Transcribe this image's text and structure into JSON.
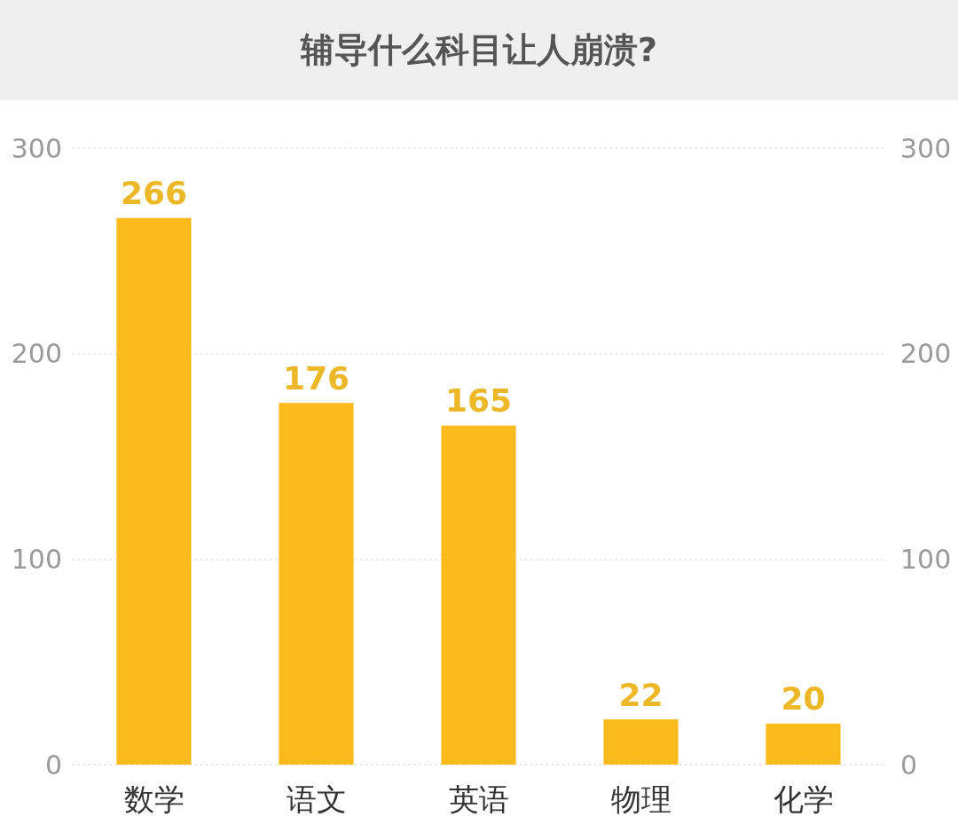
{
  "chart_data": {
    "type": "bar",
    "title": "辅导什么科目让人崩溃?",
    "categories": [
      "数学",
      "语文",
      "英语",
      "物理",
      "化学"
    ],
    "values": [
      266,
      176,
      165,
      22,
      20
    ],
    "color": "#fbbb1c",
    "ylim": [
      0,
      300
    ],
    "yticks": [
      0,
      100,
      200,
      300
    ],
    "y2lim": [
      0,
      300
    ],
    "y2ticks": [
      0,
      100,
      200,
      300
    ],
    "grid": "y",
    "data_labels": true
  }
}
